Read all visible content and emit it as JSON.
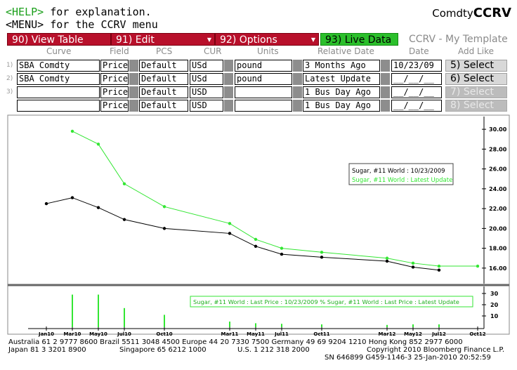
{
  "header": {
    "help_key": "<HELP>",
    "help_text": " for explanation.",
    "menu_key": "<MENU>",
    "menu_text": " for the CCRV menu",
    "ticker_prefix": "Comdty",
    "ticker_function": "CCRV"
  },
  "menu": [
    {
      "label": "90)  View Table"
    },
    {
      "label": "91)  Edit"
    },
    {
      "label": "92)  Options"
    }
  ],
  "live_data_label": "93)  Live Data",
  "template_label": "CCRV - My Template",
  "columns": {
    "curve": "Curve",
    "field": "Field",
    "pcs": "PCS",
    "cur": "CUR",
    "units": "Units",
    "relative_date": "Relative Date",
    "date": "Date",
    "add_like": "Add Like"
  },
  "rows": [
    {
      "num": "1)",
      "curve": "SBA Comdty",
      "field": "Price",
      "pcs": "Default",
      "cur": "USd",
      "units": "pound",
      "relative_date": "3 Months Ago",
      "date": "10/23/09",
      "select": "5)  Select",
      "enabled": true
    },
    {
      "num": "2)",
      "curve": "SBA Comdty",
      "field": "Price",
      "pcs": "Default",
      "cur": "USd",
      "units": "pound",
      "relative_date": "Latest Update",
      "date": "__/__/__",
      "select": "6)  Select",
      "enabled": true
    },
    {
      "num": "3)",
      "curve": "",
      "field": "Price",
      "pcs": "Default",
      "cur": "USD",
      "units": "",
      "relative_date": "1 Bus Day Ago",
      "date": "__/__/__",
      "select": "7)  Select",
      "enabled": false
    },
    {
      "num": "",
      "curve": "",
      "field": "Price",
      "pcs": "Default",
      "cur": "USD",
      "units": "",
      "relative_date": "1 Bus Day Ago",
      "date": "__/__/__",
      "select": "8)  Select",
      "enabled": false
    }
  ],
  "colors": {
    "menu_red": "#b8102b",
    "live_green": "#2bbf2b",
    "series_black": "#000000",
    "series_green": "#33e633"
  },
  "chart_data": {
    "type": "line",
    "series": [
      {
        "name": "Sugar, #11 World : 10/23/2009",
        "color": "#000000",
        "x": [
          "Jan10",
          "Mar10",
          "May10",
          "Jul10",
          "Oct10",
          "Mar11",
          "May11",
          "Jul11",
          "Oct11",
          "Mar12",
          "May12",
          "Jul12"
        ],
        "values": [
          22.5,
          23.1,
          22.1,
          20.9,
          20.0,
          19.5,
          18.2,
          17.4,
          17.1,
          16.7,
          16.1,
          15.8
        ]
      },
      {
        "name": "Sugar, #11 World : Latest Update",
        "color": "#33e633",
        "x": [
          "Mar10",
          "May10",
          "Jul10",
          "Oct10",
          "Mar11",
          "May11",
          "Jul11",
          "Oct11",
          "Mar12",
          "May12",
          "Jul12",
          "Oct12"
        ],
        "values": [
          29.8,
          28.5,
          24.5,
          22.2,
          20.5,
          18.9,
          18.0,
          17.6,
          17.0,
          16.5,
          16.2,
          16.2
        ]
      }
    ],
    "x_ticks": [
      "Jan10",
      "Mar10",
      "May10",
      "Jul10",
      "Oct10",
      "Mar11",
      "May11",
      "Jul11",
      "Oct11",
      "Mar12",
      "May12",
      "Jul12",
      "Oct12"
    ],
    "y_ticks": [
      "30.00",
      "28.00",
      "26.00",
      "24.00",
      "22.00",
      "20.00",
      "18.00",
      "16.00"
    ],
    "ylim": [
      15,
      31
    ],
    "legend_position": "top-right",
    "spread": {
      "label": "Sugar, #11 World : Last Price : 10/23/2009 % Sugar, #11 World : Last Price : Latest Update",
      "y_ticks": [
        "30",
        "20",
        "10"
      ],
      "ylim": [
        0,
        35
      ],
      "x": [
        "Mar10",
        "May10",
        "Jul10",
        "Oct10",
        "Mar11",
        "May11",
        "Jul11",
        "Oct11",
        "Mar12",
        "May12",
        "Jul12"
      ],
      "values": [
        29,
        29,
        17,
        11,
        5,
        3.5,
        3,
        2.5,
        2,
        2.5,
        2.5
      ]
    }
  },
  "footer": {
    "line1": "Australia 61 2 9777 8600 Brazil 5511 3048 4500 Europe 44 20 7330 7500 Germany 49 69 9204 1210 Hong Kong 852 2977 6000",
    "line2_left": "Japan 81 3 3201 8900",
    "line2_mid": "Singapore 65 6212 1000",
    "line2_us": "U.S. 1 212 318 2000",
    "line2_right": "Copyright 2010 Bloomberg Finance L.P.",
    "line3": "SN 646899 G459-1146-3 25-Jan-2010 20:52:59"
  }
}
